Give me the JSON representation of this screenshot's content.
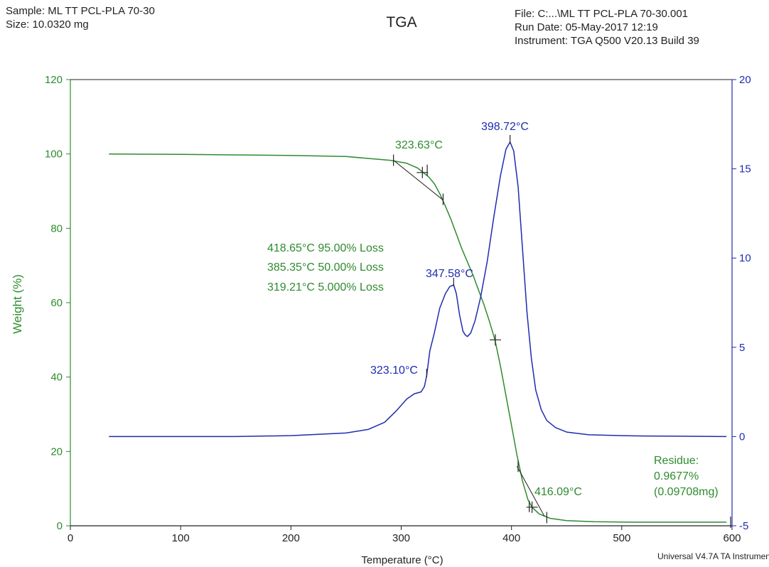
{
  "header": {
    "sample": "Sample: ML TT PCL-PLA 70-30",
    "size": "Size:  10.0320 mg",
    "file": "File: C:...\\ML TT PCL-PLA 70-30.001",
    "run_date": "Run Date: 05-May-2017 12:19",
    "instrument": "Instrument: TGA Q500 V20.13 Build 39"
  },
  "footer": "Universal V4.7A TA Instruments",
  "colors": {
    "weight": "#2e8b2e",
    "deriv": "#1f2bb0",
    "axis": "#222222"
  },
  "chart_data": {
    "type": "line",
    "title": "TGA",
    "xlabel": "Temperature (°C)",
    "ylabel": "Weight (%)",
    "xlim": [
      0,
      600
    ],
    "ylim": [
      0,
      120
    ],
    "y2lim": [
      -5,
      20
    ],
    "x_ticks": [
      "0",
      "100",
      "200",
      "300",
      "400",
      "500",
      "600"
    ],
    "y_ticks": [
      "0",
      "20",
      "40",
      "60",
      "80",
      "100",
      "120"
    ],
    "y2_ticks": [
      "-5",
      "0",
      "5",
      "10",
      "15",
      "20"
    ],
    "grid": false,
    "series": [
      {
        "axis": "left",
        "color": "#2e8b2e",
        "points": [
          [
            35,
            100
          ],
          [
            100,
            99.9
          ],
          [
            200,
            99.6
          ],
          [
            250,
            99.3
          ],
          [
            290,
            98.3
          ],
          [
            305,
            97.5
          ],
          [
            315,
            96.2
          ],
          [
            320,
            95
          ],
          [
            325,
            93.8
          ],
          [
            330,
            92
          ],
          [
            335,
            89.3
          ],
          [
            340,
            86
          ],
          [
            345,
            82.5
          ],
          [
            350,
            78.5
          ],
          [
            355,
            74.5
          ],
          [
            360,
            71
          ],
          [
            365,
            67.5
          ],
          [
            370,
            63.5
          ],
          [
            375,
            59.5
          ],
          [
            380,
            55
          ],
          [
            385,
            50
          ],
          [
            390,
            43
          ],
          [
            395,
            35
          ],
          [
            400,
            27
          ],
          [
            405,
            19
          ],
          [
            410,
            12
          ],
          [
            415,
            7
          ],
          [
            418.65,
            5
          ],
          [
            425,
            3.2
          ],
          [
            435,
            2
          ],
          [
            450,
            1.4
          ],
          [
            475,
            1.1
          ],
          [
            500,
            1.0
          ],
          [
            550,
            0.98
          ],
          [
            595,
            0.97
          ]
        ]
      },
      {
        "axis": "right",
        "color": "#1f2bb0",
        "points": [
          [
            35,
            0
          ],
          [
            100,
            0
          ],
          [
            150,
            0
          ],
          [
            200,
            0.05
          ],
          [
            250,
            0.2
          ],
          [
            270,
            0.4
          ],
          [
            285,
            0.8
          ],
          [
            295,
            1.4
          ],
          [
            305,
            2.1
          ],
          [
            312,
            2.4
          ],
          [
            318,
            2.5
          ],
          [
            321,
            2.8
          ],
          [
            323.1,
            3.4
          ],
          [
            326,
            4.8
          ],
          [
            330,
            5.8
          ],
          [
            335,
            7.2
          ],
          [
            340,
            8.0
          ],
          [
            344,
            8.4
          ],
          [
            347.58,
            8.5
          ],
          [
            350,
            8.0
          ],
          [
            353,
            6.8
          ],
          [
            356,
            5.9
          ],
          [
            358,
            5.7
          ],
          [
            360,
            5.6
          ],
          [
            363,
            5.8
          ],
          [
            367,
            6.5
          ],
          [
            372,
            7.8
          ],
          [
            378,
            9.8
          ],
          [
            384,
            12.3
          ],
          [
            390,
            14.6
          ],
          [
            395,
            16.1
          ],
          [
            398.72,
            16.5
          ],
          [
            402,
            16.0
          ],
          [
            406,
            14.0
          ],
          [
            410,
            10.5
          ],
          [
            414,
            7.0
          ],
          [
            418,
            4.4
          ],
          [
            422,
            2.6
          ],
          [
            427,
            1.5
          ],
          [
            432,
            0.9
          ],
          [
            440,
            0.5
          ],
          [
            450,
            0.25
          ],
          [
            470,
            0.1
          ],
          [
            500,
            0.05
          ],
          [
            520,
            0.03
          ],
          [
            550,
            0.02
          ],
          [
            595,
            0.0
          ]
        ]
      }
    ],
    "annotations": {
      "green": [
        {
          "text": "323.63°C",
          "x": 323.63,
          "y": 95.2
        },
        {
          "text": "418.65°C 95.00% Loss",
          "x": 418.65,
          "y": 5
        },
        {
          "text": "385.35°C 50.00% Loss",
          "x": 385.35,
          "y": 50
        },
        {
          "text": "319.21°C 5.000% Loss",
          "x": 319.21,
          "y": 95
        },
        {
          "text": "416.09°C",
          "x": 416.09,
          "y": 5
        },
        {
          "text": "Residue:"
        },
        {
          "text": "0.9677%"
        },
        {
          "text": "(0.09708mg)"
        }
      ],
      "blue": [
        {
          "text": "398.72°C",
          "x": 398.72,
          "y2": 16.5
        },
        {
          "text": "347.58°C",
          "x": 347.58,
          "y2": 8.5
        },
        {
          "text": "323.10°C",
          "x": 323.1,
          "y2": 3.4
        }
      ]
    }
  }
}
